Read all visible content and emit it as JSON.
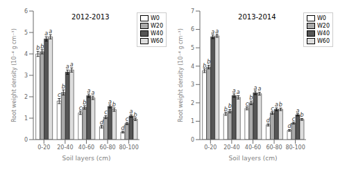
{
  "chart_data": [
    {
      "type": "bar",
      "title": "2012-2013",
      "x_label": "Soil layers (cm)",
      "y_label": "Root weight density (10⁻⁴ g cm⁻³)",
      "categories": [
        "0-20",
        "20-40",
        "40-60",
        "60-80",
        "80-100"
      ],
      "series": [
        {
          "name": "W0",
          "color": "#ffffff",
          "values": [
            4.0,
            1.8,
            1.25,
            0.6,
            0.35
          ],
          "errors": [
            0.12,
            0.12,
            0.08,
            0.06,
            0.04
          ],
          "letters": [
            "b",
            "c",
            "c",
            "d",
            "d"
          ]
        },
        {
          "name": "W20",
          "color": "#aaaaaa",
          "values": [
            4.1,
            2.2,
            1.5,
            1.05,
            0.75
          ],
          "errors": [
            0.1,
            0.12,
            0.08,
            0.07,
            0.05
          ],
          "letters": [
            "b",
            "b",
            "b",
            "c",
            "c"
          ]
        },
        {
          "name": "W40",
          "color": "#555555",
          "values": [
            4.7,
            3.15,
            2.05,
            1.55,
            1.1
          ],
          "errors": [
            0.1,
            0.1,
            0.08,
            0.07,
            0.06
          ],
          "letters": [
            "a",
            "a",
            "a",
            "a",
            "a"
          ]
        },
        {
          "name": "W60",
          "color": "#dddddd",
          "values": [
            4.8,
            3.25,
            1.95,
            1.4,
            0.95
          ],
          "errors": [
            0.1,
            0.1,
            0.08,
            0.08,
            0.06
          ],
          "letters": [
            "a",
            "a",
            "a",
            "b",
            "b"
          ]
        }
      ],
      "ylim": [
        0,
        6
      ],
      "yticks": [
        0,
        1,
        2,
        3,
        4,
        5,
        6
      ],
      "grid": false,
      "legend": "upper right"
    },
    {
      "type": "bar",
      "title": "2013-2014",
      "x_label": "Soil layers (cm)",
      "y_label": "Root weight density (10⁻⁴ g cm⁻³)",
      "categories": [
        "0-20",
        "20-40",
        "40-60",
        "60-80",
        "80-100"
      ],
      "series": [
        {
          "name": "W0",
          "color": "#ffffff",
          "values": [
            3.75,
            1.4,
            1.7,
            0.8,
            0.5
          ],
          "errors": [
            0.1,
            0.08,
            0.08,
            0.06,
            0.05
          ],
          "letters": [
            "b",
            "b",
            "c",
            "d",
            "d"
          ]
        },
        {
          "name": "W20",
          "color": "#aaaaaa",
          "values": [
            3.95,
            1.55,
            2.0,
            1.45,
            0.9
          ],
          "errors": [
            0.1,
            0.09,
            0.1,
            0.07,
            0.05
          ],
          "letters": [
            "b",
            "b",
            "b",
            "c",
            "c"
          ]
        },
        {
          "name": "W40",
          "color": "#555555",
          "values": [
            5.6,
            2.4,
            2.55,
            1.65,
            1.35
          ],
          "errors": [
            0.1,
            0.09,
            0.1,
            0.08,
            0.06
          ],
          "letters": [
            "a",
            "a",
            "a",
            "a",
            "a"
          ]
        },
        {
          "name": "W60",
          "color": "#dddddd",
          "values": [
            5.65,
            2.3,
            2.5,
            1.65,
            1.1
          ],
          "errors": [
            0.08,
            0.09,
            0.08,
            0.07,
            0.05
          ],
          "letters": [
            "a",
            "a",
            "a",
            "b",
            "b"
          ]
        }
      ],
      "ylim": [
        0,
        7
      ],
      "yticks": [
        0,
        1,
        2,
        3,
        4,
        5,
        6,
        7
      ],
      "grid": false,
      "legend": "upper right"
    }
  ]
}
